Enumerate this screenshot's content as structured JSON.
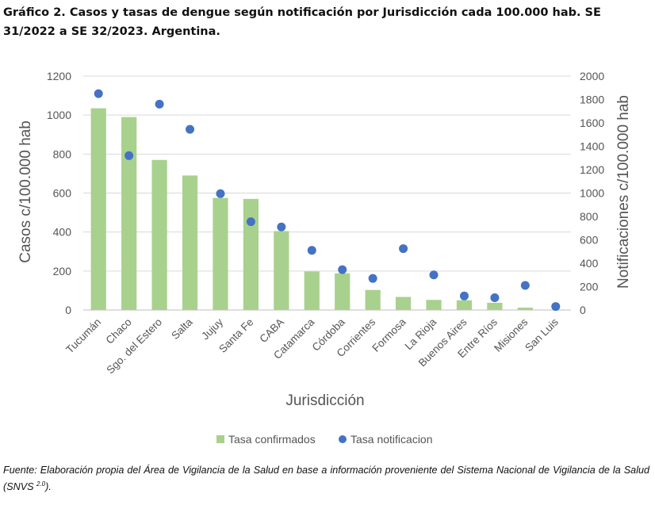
{
  "title": "Gráfico 2. Casos y tasas de dengue según notificación por Jurisdicción cada 100.000 hab. SE 31/2022 a SE 32/2023. Argentina.",
  "source": {
    "text": "Fuente: Elaboración propia del Área de Vigilancia de la Salud en base a información proveniente del Sistema Nacional de Vigilancia de la Salud (SNVS ",
    "sup": "2.0",
    "end": ")."
  },
  "chart_data": {
    "type": "bar",
    "categories": [
      "Tucumán",
      "Chaco",
      "Sgo. del Estero",
      "Salta",
      "Jujuy",
      "Santa Fe",
      "CABA",
      "Catamarca",
      "Córdoba",
      "Corrientes",
      "Formosa",
      "La Rioja",
      "Buenos Aires",
      "Entre Ríos",
      "Misiones",
      "San Luis"
    ],
    "xlabel": "Jurisdicción",
    "ylabel": "Casos c/100.000 hab",
    "y2label": "Notificaciones c/100.000 hab",
    "ylim": [
      0,
      1200
    ],
    "y2lim": [
      0,
      2000
    ],
    "yticks": [
      "0",
      "200",
      "400",
      "600",
      "800",
      "1000",
      "1200"
    ],
    "y2ticks": [
      "0",
      "200",
      "400",
      "600",
      "800",
      "1000",
      "1200",
      "1400",
      "1600",
      "1800",
      "2000"
    ],
    "grid": true,
    "legend_position": "bottom",
    "series": [
      {
        "name": "Tasa confirmados",
        "type": "bar",
        "axis": "left",
        "color": "#a9d18e",
        "values": [
          1035,
          990,
          770,
          690,
          575,
          570,
          405,
          198,
          188,
          103,
          67,
          52,
          50,
          37,
          12,
          2
        ]
      },
      {
        "name": "Tasa notificacion",
        "type": "scatter",
        "axis": "right",
        "color": "#4472c4",
        "values": [
          1850,
          1320,
          1760,
          1545,
          995,
          755,
          710,
          510,
          345,
          270,
          525,
          300,
          120,
          105,
          210,
          30
        ]
      }
    ]
  }
}
